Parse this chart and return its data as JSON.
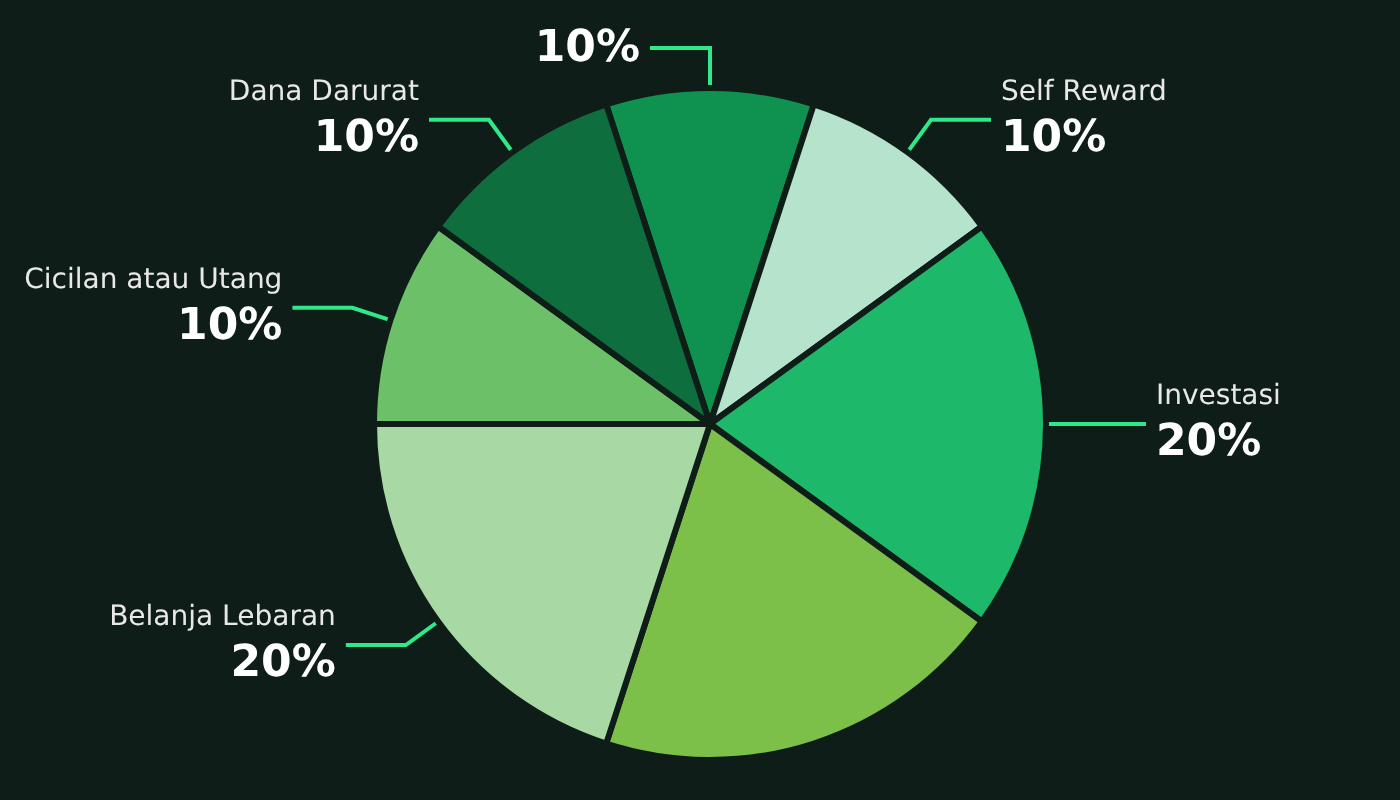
{
  "chart_data": {
    "type": "pie",
    "categories": [
      null,
      "Self Reward",
      "Investasi",
      null,
      "Belanja Lebaran",
      "Cicilan atau Utang",
      "Dana Darurat"
    ],
    "values": [
      10,
      10,
      20,
      20,
      20,
      10,
      10
    ],
    "value_labels": [
      "10%",
      "10%",
      "20%",
      null,
      "20%",
      "10%",
      "10%"
    ],
    "colors": [
      "#0f9150",
      "#b5e3cc",
      "#1db86a",
      "#7cc04a",
      "#a8d9a5",
      "#6cc168",
      "#0e6e3e"
    ],
    "legend": false
  }
}
